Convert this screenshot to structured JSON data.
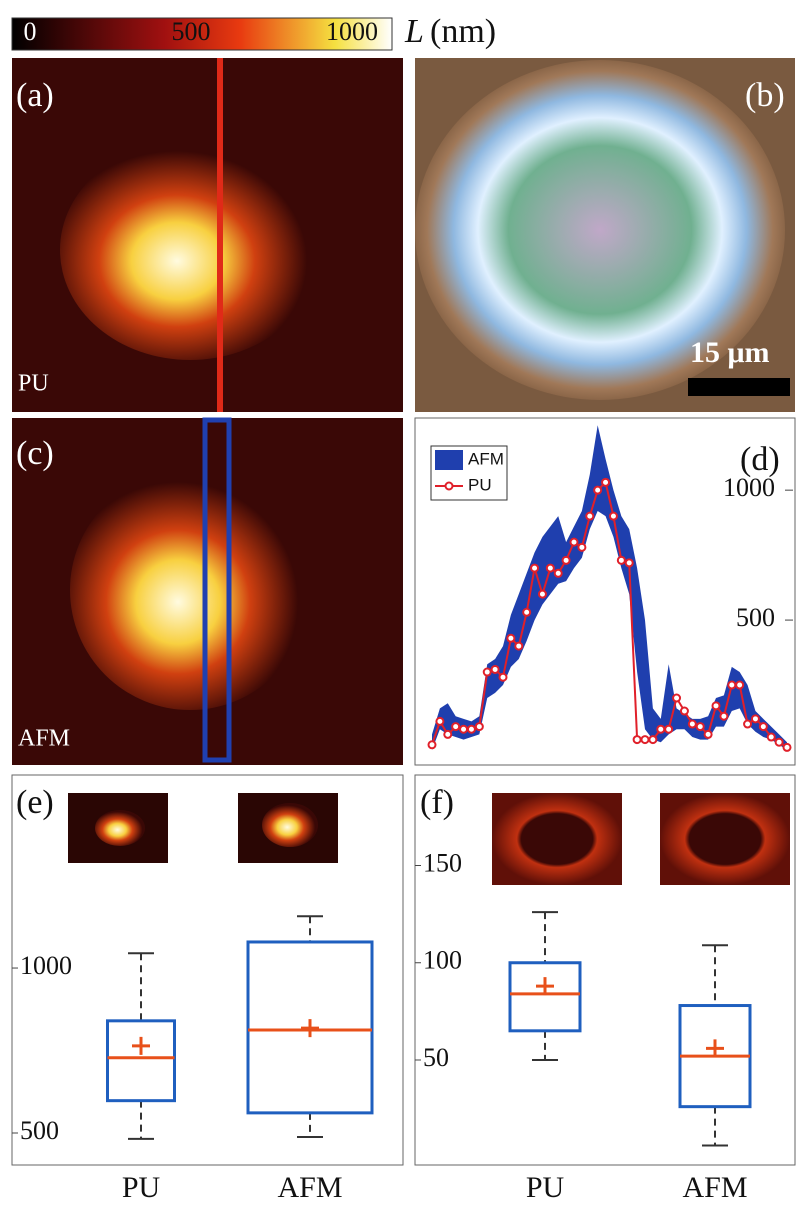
{
  "colorbar": {
    "ticks": [
      0,
      500,
      1000
    ],
    "symbol": "L",
    "unit": "(nm)"
  },
  "panels": {
    "a": "(a)",
    "b": "(b)",
    "c": "(c)",
    "d": "(d)",
    "e": "(e)",
    "f": "(f)",
    "a_caption": "PU",
    "c_caption": "AFM",
    "scale_bar": "15 μm"
  },
  "chart_data": [
    {
      "type": "line",
      "series": [
        {
          "name": "AFM",
          "color": "#1f3fae",
          "values": [
            60,
            160,
            180,
            130,
            120,
            110,
            130,
            330,
            350,
            400,
            520,
            600,
            680,
            760,
            820,
            860,
            900,
            800,
            860,
            920,
            1060,
            1250,
            1120,
            1000,
            900,
            850,
            700,
            500,
            160,
            120,
            330,
            160,
            140,
            120,
            120,
            130,
            200,
            210,
            320,
            300,
            250,
            150,
            120,
            90,
            60,
            30
          ],
          "lower": [
            0,
            80,
            60,
            50,
            40,
            50,
            60,
            200,
            220,
            250,
            320,
            350,
            420,
            500,
            560,
            600,
            640,
            650,
            700,
            740,
            850,
            920,
            900,
            820,
            700,
            600,
            300,
            80,
            40,
            30,
            60,
            80,
            80,
            50,
            40,
            40,
            90,
            90,
            150,
            160,
            100,
            70,
            50,
            40,
            20,
            0
          ]
        },
        {
          "name": "PU",
          "color": "#e0202a",
          "values": [
            20,
            110,
            60,
            90,
            80,
            80,
            90,
            300,
            310,
            280,
            430,
            400,
            530,
            700,
            600,
            700,
            680,
            730,
            800,
            780,
            900,
            1000,
            1030,
            900,
            730,
            720,
            40,
            40,
            40,
            80,
            80,
            200,
            150,
            100,
            90,
            60,
            170,
            130,
            250,
            250,
            100,
            120,
            90,
            50,
            30,
            10
          ]
        }
      ],
      "ylim": [
        0,
        1270
      ],
      "yticks": [
        500,
        1000
      ]
    },
    {
      "type": "box",
      "categories": [
        "PU",
        "AFM"
      ],
      "color": "#1f5fbf",
      "median_color": "#e8501a",
      "boxes": [
        {
          "whisker_low": 482,
          "q1": 598,
          "median": 728,
          "q3": 840,
          "whisker_high": 1045,
          "mean": 764
        },
        {
          "whisker_low": 488,
          "q1": 561,
          "median": 812,
          "q3": 1079,
          "whisker_high": 1157,
          "mean": 818
        }
      ],
      "ylim": [
        403,
        1576
      ],
      "yticks": [
        500,
        1000
      ]
    },
    {
      "type": "box",
      "categories": [
        "PU",
        "AFM"
      ],
      "color": "#1f5fbf",
      "median_color": "#e8501a",
      "boxes": [
        {
          "whisker_low": 50,
          "q1": 65,
          "median": 84,
          "q3": 100,
          "whisker_high": 126,
          "mean": 88
        },
        {
          "whisker_low": 6,
          "q1": 26,
          "median": 52,
          "q3": 78,
          "whisker_high": 109,
          "mean": 56
        }
      ],
      "ylim": [
        -4,
        195
      ],
      "yticks": [
        50,
        100,
        150
      ]
    }
  ]
}
